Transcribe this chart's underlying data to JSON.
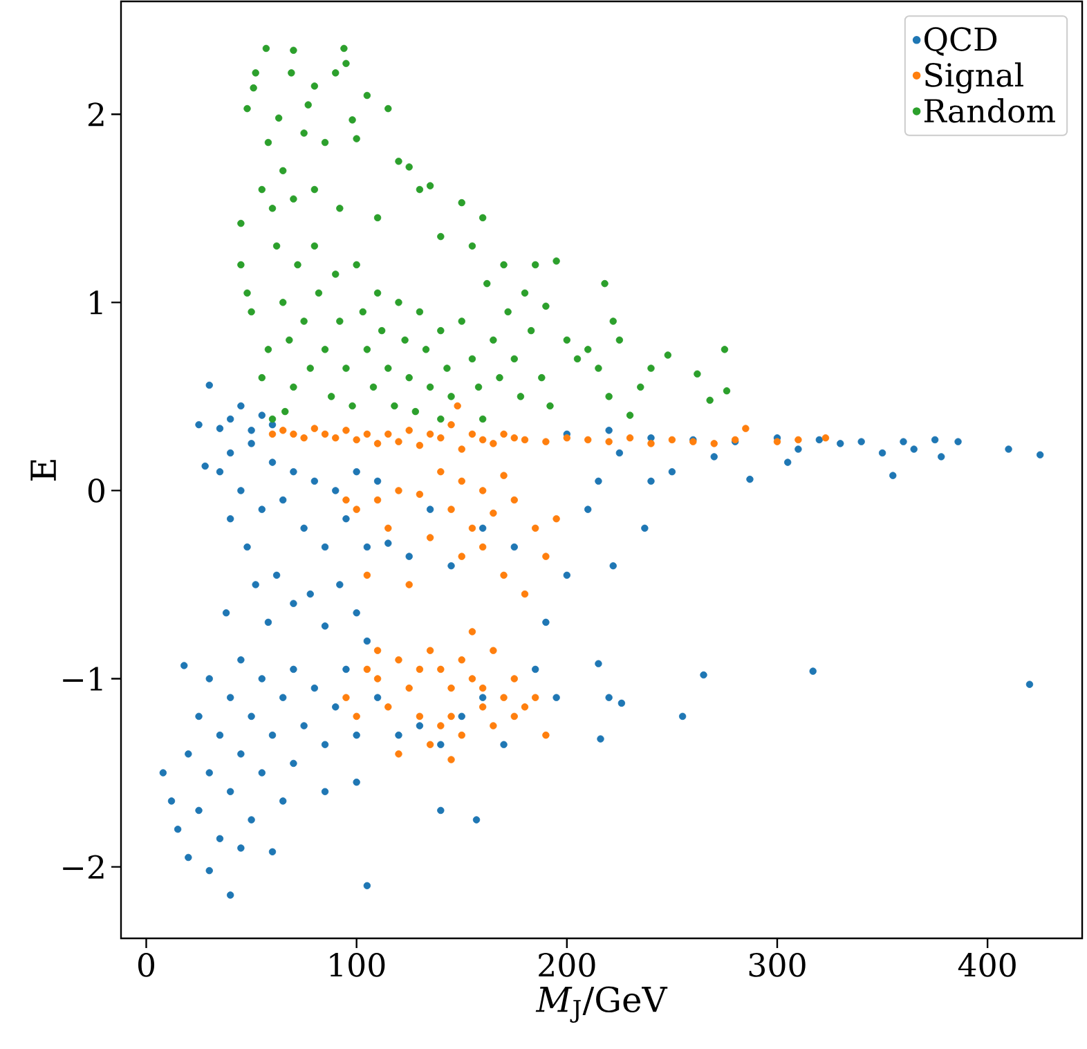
{
  "chart_data": {
    "type": "scatter",
    "xlabel": "*M*$_{J}$/GeV",
    "ylabel": "E",
    "xlim": [
      -12,
      445
    ],
    "ylim": [
      -2.38,
      2.6
    ],
    "xticks": [
      0,
      100,
      200,
      300,
      400
    ],
    "yticks": [
      {
        "value": -2,
        "label": "−2"
      },
      {
        "value": -1,
        "label": "−1"
      },
      0,
      1,
      2
    ],
    "legend": "top right",
    "grid": false,
    "series": [
      {
        "name": "QCD",
        "color": "#1f77b4",
        "x": [
          25,
          30,
          35,
          40,
          45,
          50,
          55,
          60,
          200,
          220,
          240,
          260,
          280,
          300,
          310,
          320,
          330,
          340,
          350,
          355,
          360,
          365,
          375,
          378,
          386,
          410,
          425,
          287,
          305,
          270,
          250,
          240,
          225,
          215,
          28,
          35,
          40,
          45,
          50,
          55,
          60,
          65,
          70,
          75,
          80,
          85,
          90,
          95,
          100,
          105,
          110,
          48,
          52,
          58,
          62,
          70,
          78,
          85,
          92,
          100,
          105,
          40,
          115,
          125,
          135,
          145,
          160,
          175,
          190,
          200,
          210,
          222,
          237,
          18,
          20,
          25,
          30,
          30,
          35,
          38,
          40,
          40,
          45,
          45,
          50,
          55,
          55,
          60,
          65,
          70,
          70,
          75,
          80,
          85,
          90,
          95,
          100,
          110,
          120,
          130,
          140,
          150,
          160,
          170,
          185,
          195,
          215,
          216,
          220,
          226,
          255,
          265,
          317,
          420,
          8,
          12,
          15,
          20,
          25,
          30,
          35,
          40,
          45,
          50,
          60,
          65,
          105,
          140,
          157,
          85,
          100
        ],
        "values": [
          0.35,
          0.56,
          0.33,
          0.38,
          0.45,
          0.32,
          0.4,
          0.35,
          0.3,
          0.32,
          0.28,
          0.27,
          0.26,
          0.28,
          0.22,
          0.27,
          0.25,
          0.26,
          0.2,
          0.08,
          0.26,
          0.22,
          0.27,
          0.18,
          0.26,
          0.22,
          0.19,
          0.06,
          0.15,
          0.18,
          0.1,
          0.05,
          0.2,
          0.05,
          0.13,
          0.1,
          0.2,
          0.0,
          0.25,
          -0.1,
          0.15,
          -0.05,
          0.1,
          -0.2,
          0.05,
          -0.3,
          0.0,
          -0.15,
          0.1,
          -0.3,
          0.05,
          -0.3,
          -0.5,
          -0.7,
          -0.45,
          -0.6,
          -0.55,
          -0.72,
          -0.5,
          -0.65,
          -0.8,
          -0.15,
          -0.28,
          -0.35,
          -0.1,
          -0.4,
          -0.2,
          -0.3,
          -0.7,
          -0.45,
          -0.1,
          -0.4,
          -0.2,
          -0.93,
          -1.4,
          -1.2,
          -1.0,
          -1.5,
          -1.3,
          -0.65,
          -1.1,
          -1.6,
          -0.9,
          -1.4,
          -1.2,
          -1.0,
          -1.5,
          -1.3,
          -1.1,
          -0.95,
          -1.45,
          -1.25,
          -1.05,
          -1.35,
          -1.15,
          -0.95,
          -1.3,
          -1.1,
          -1.3,
          -1.25,
          -1.35,
          -1.2,
          -1.1,
          -1.35,
          -0.95,
          -1.1,
          -0.92,
          -1.32,
          -1.1,
          -1.13,
          -1.2,
          -0.98,
          -0.96,
          -1.03,
          -1.5,
          -1.65,
          -1.8,
          -1.95,
          -1.7,
          -2.02,
          -1.85,
          -2.15,
          -1.9,
          -1.75,
          -1.92,
          -1.65,
          -2.1,
          -1.7,
          -1.75,
          -1.6,
          -1.55
        ]
      },
      {
        "name": "Signal",
        "color": "#ff7f0e",
        "x": [
          60,
          65,
          70,
          75,
          80,
          85,
          90,
          95,
          100,
          105,
          110,
          115,
          120,
          125,
          130,
          135,
          140,
          145,
          148,
          150,
          155,
          160,
          165,
          170,
          175,
          180,
          190,
          200,
          210,
          220,
          230,
          240,
          250,
          260,
          270,
          280,
          285,
          300,
          310,
          323,
          140,
          150,
          160,
          170,
          130,
          120,
          110,
          100,
          145,
          155,
          165,
          175,
          185,
          190,
          180,
          170,
          150,
          135,
          125,
          105,
          160,
          195,
          115,
          95,
          105,
          110,
          120,
          125,
          130,
          135,
          140,
          145,
          150,
          155,
          160,
          165,
          170,
          175,
          180,
          185,
          190,
          155,
          140,
          130,
          115,
          110,
          145,
          150,
          145,
          135,
          120,
          100,
          95,
          160,
          165,
          175
        ],
        "values": [
          0.3,
          0.32,
          0.3,
          0.28,
          0.33,
          0.3,
          0.28,
          0.32,
          0.27,
          0.3,
          0.25,
          0.3,
          0.26,
          0.32,
          0.24,
          0.3,
          0.28,
          0.35,
          0.45,
          0.22,
          0.3,
          0.27,
          0.25,
          0.3,
          0.28,
          0.27,
          0.26,
          0.28,
          0.27,
          0.26,
          0.28,
          0.25,
          0.27,
          0.26,
          0.25,
          0.27,
          0.33,
          0.26,
          0.27,
          0.28,
          0.1,
          0.05,
          0.0,
          0.08,
          -0.02,
          0.0,
          -0.05,
          -0.1,
          -0.1,
          -0.2,
          -0.12,
          -0.05,
          -0.2,
          -0.35,
          -0.55,
          -0.45,
          -0.35,
          -0.25,
          -0.5,
          -0.45,
          -0.3,
          -0.15,
          -0.2,
          -0.05,
          -0.95,
          -0.85,
          -0.9,
          -1.05,
          -0.95,
          -0.85,
          -0.95,
          -1.05,
          -0.9,
          -1.0,
          -1.05,
          -0.85,
          -1.1,
          -1.0,
          -1.15,
          -1.1,
          -1.3,
          -0.75,
          -1.25,
          -1.2,
          -1.15,
          -1.0,
          -1.2,
          -1.3,
          -1.43,
          -1.35,
          -1.4,
          -1.2,
          -1.1,
          -1.15,
          -1.25,
          -1.2
        ]
      },
      {
        "name": "Random",
        "color": "#2ca02c",
        "x": [
          57,
          70,
          94,
          52,
          69,
          95,
          90,
          48,
          51,
          80,
          77,
          98,
          105,
          115,
          63,
          58,
          85,
          75,
          100,
          120,
          125,
          130,
          135,
          150,
          160,
          65,
          55,
          60,
          45,
          70,
          80,
          92,
          110,
          140,
          155,
          170,
          185,
          195,
          180,
          190,
          200,
          205,
          210,
          218,
          222,
          215,
          225,
          240,
          248,
          262,
          268,
          275,
          276,
          220,
          230,
          235,
          45,
          48,
          50,
          55,
          58,
          62,
          65,
          68,
          70,
          72,
          75,
          78,
          80,
          82,
          85,
          88,
          90,
          92,
          95,
          98,
          100,
          103,
          105,
          108,
          110,
          112,
          115,
          118,
          120,
          123,
          125,
          128,
          130,
          133,
          135,
          140,
          143,
          145,
          150,
          155,
          158,
          162,
          165,
          168,
          172,
          175,
          178,
          183,
          188,
          192,
          160,
          140,
          66,
          60
        ],
        "values": [
          2.35,
          2.34,
          2.35,
          2.22,
          2.22,
          2.27,
          2.22,
          2.03,
          2.14,
          2.15,
          2.05,
          1.97,
          2.1,
          2.03,
          1.98,
          1.85,
          1.85,
          1.9,
          1.87,
          1.75,
          1.72,
          1.6,
          1.62,
          1.53,
          1.45,
          1.7,
          1.6,
          1.5,
          1.42,
          1.55,
          1.6,
          1.5,
          1.45,
          1.35,
          1.3,
          1.2,
          1.2,
          1.22,
          1.05,
          0.98,
          0.8,
          0.7,
          0.75,
          1.1,
          0.9,
          0.65,
          0.8,
          0.65,
          0.72,
          0.62,
          0.48,
          0.75,
          0.53,
          0.5,
          0.4,
          0.55,
          1.2,
          1.05,
          0.95,
          0.6,
          0.75,
          1.3,
          1.0,
          0.8,
          0.55,
          1.2,
          0.9,
          0.65,
          1.3,
          1.05,
          0.75,
          0.5,
          1.15,
          0.9,
          0.65,
          0.45,
          1.2,
          0.95,
          0.75,
          0.55,
          1.05,
          0.85,
          0.65,
          0.45,
          1.0,
          0.8,
          0.6,
          0.42,
          0.95,
          0.75,
          0.55,
          0.85,
          0.65,
          0.5,
          0.9,
          0.7,
          0.55,
          1.1,
          0.8,
          0.6,
          0.95,
          0.7,
          0.5,
          0.85,
          0.6,
          0.45,
          0.38,
          0.38,
          0.42,
          0.38
        ]
      }
    ]
  }
}
